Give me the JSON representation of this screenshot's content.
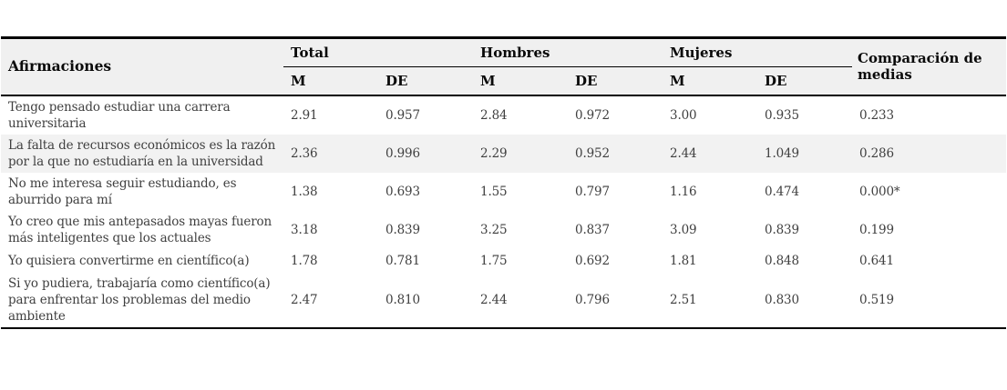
{
  "table": {
    "headers": {
      "afirmaciones": "Afirmaciones",
      "groups": [
        "Total",
        "Hombres",
        "Mujeres"
      ],
      "sub": [
        "M",
        "DE",
        "M",
        "DE",
        "M",
        "DE"
      ],
      "comparacion": "Comparación de medias"
    },
    "rows": [
      {
        "afirmacion": "Tengo pensado estudiar una carrera universitaria",
        "values": [
          "2.91",
          "0.957",
          "2.84",
          "0.972",
          "3.00",
          "0.935",
          "0.233"
        ]
      },
      {
        "afirmacion": "La falta de recursos económicos es la razón por la que no estudiaría en la universidad",
        "values": [
          "2.36",
          "0.996",
          "2.29",
          "0.952",
          "2.44",
          "1.049",
          "0.286"
        ]
      },
      {
        "afirmacion": "No me interesa seguir estudiando, es aburrido para mí",
        "values": [
          "1.38",
          "0.693",
          "1.55",
          "0.797",
          "1.16",
          "0.474",
          "0.000*"
        ]
      },
      {
        "afirmacion": "Yo creo que mis antepasados mayas fueron más inteligentes que los actuales",
        "values": [
          "3.18",
          "0.839",
          "3.25",
          "0.837",
          "3.09",
          "0.839",
          "0.199"
        ]
      },
      {
        "afirmacion": "Yo quisiera convertirme en científico(a)",
        "values": [
          "1.78",
          "0.781",
          "1.75",
          "0.692",
          "1.81",
          "0.848",
          "0.641"
        ]
      },
      {
        "afirmacion": "Si yo pudiera, trabajaría como científico(a) para enfrentar los problemas del medio ambiente",
        "values": [
          "2.47",
          "0.810",
          "2.44",
          "0.796",
          "2.51",
          "0.830",
          "0.519"
        ]
      }
    ]
  },
  "colors": {
    "header_bg": "#f0f0f0",
    "shaded_row_bg": "#f2f2f2",
    "border": "#000000",
    "body_text": "#3f3f3f",
    "header_text": "#0a0a0a"
  }
}
